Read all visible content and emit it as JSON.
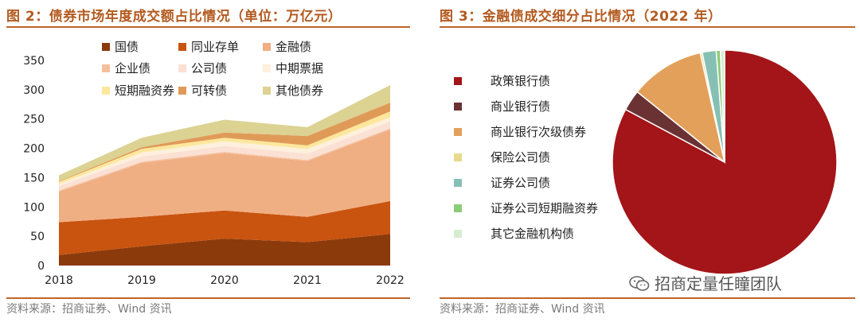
{
  "figures": {
    "fig2": {
      "title": "图 2：债券市场年度成交额占比情况（单位：万亿元）",
      "source": "资料来源：招商证券、Wind 资讯"
    },
    "fig3": {
      "title": "图 3：金融债成交细分占比情况（2022 年）",
      "source": "资料来源：招商证券、Wind 资讯"
    }
  },
  "watermark": {
    "text": "招商定量任瞳团队",
    "icon": "wechat-icon"
  },
  "chart_data": [
    {
      "type": "area",
      "title": "图 2：债券市场年度成交额占比情况（单位：万亿元）",
      "stacked": true,
      "categories": [
        "2018",
        "2019",
        "2020",
        "2021",
        "2022"
      ],
      "ylim": [
        0,
        350
      ],
      "yticks": [
        "0",
        "50",
        "100",
        "150",
        "200",
        "250",
        "300",
        "350"
      ],
      "legend_position": "top-left",
      "series": [
        {
          "name": "国债",
          "color": "#8b3a0c",
          "values": [
            18,
            33,
            46,
            40,
            54
          ]
        },
        {
          "name": "同业存单",
          "color": "#c9540f",
          "values": [
            56,
            50,
            48,
            43,
            56
          ]
        },
        {
          "name": "金融债",
          "color": "#f0ae83",
          "values": [
            52,
            92,
            98,
            95,
            122
          ]
        },
        {
          "name": "企业债",
          "color": "#f4bf9c",
          "values": [
            2,
            2,
            2,
            2,
            2
          ]
        },
        {
          "name": "公司债",
          "color": "#fbe1d3",
          "values": [
            8,
            9,
            10,
            11,
            12
          ]
        },
        {
          "name": "中期票据",
          "color": "#fdf0dc",
          "values": [
            3,
            7,
            8,
            8,
            7
          ]
        },
        {
          "name": "短期融资券",
          "color": "#fde79c",
          "values": [
            4,
            6,
            6,
            6,
            10
          ]
        },
        {
          "name": "可转债",
          "color": "#e09a58",
          "values": [
            1,
            3,
            9,
            16,
            15
          ]
        },
        {
          "name": "其他债券",
          "color": "#dcd292",
          "values": [
            10,
            16,
            22,
            15,
            30
          ]
        }
      ]
    },
    {
      "type": "pie",
      "title": "图 3：金融债成交细分占比情况（2022 年）",
      "legend_position": "left",
      "start": "top, clockwise",
      "slices": [
        {
          "name": "政策银行债",
          "color": "#a31518",
          "value": 82.8
        },
        {
          "name": "商业银行债",
          "color": "#6b3234",
          "value": 3.0
        },
        {
          "name": "商业银行次级债券",
          "color": "#e3a05a",
          "value": 10.7
        },
        {
          "name": "保险公司债",
          "color": "#e8d98e",
          "value": 0.3
        },
        {
          "name": "证券公司债",
          "color": "#86c0b4",
          "value": 2.0
        },
        {
          "name": "证券公司短期融资券",
          "color": "#8ccc78",
          "value": 0.6
        },
        {
          "name": "其它金融机构债",
          "color": "#d7ecd2",
          "value": 0.6
        }
      ]
    }
  ]
}
